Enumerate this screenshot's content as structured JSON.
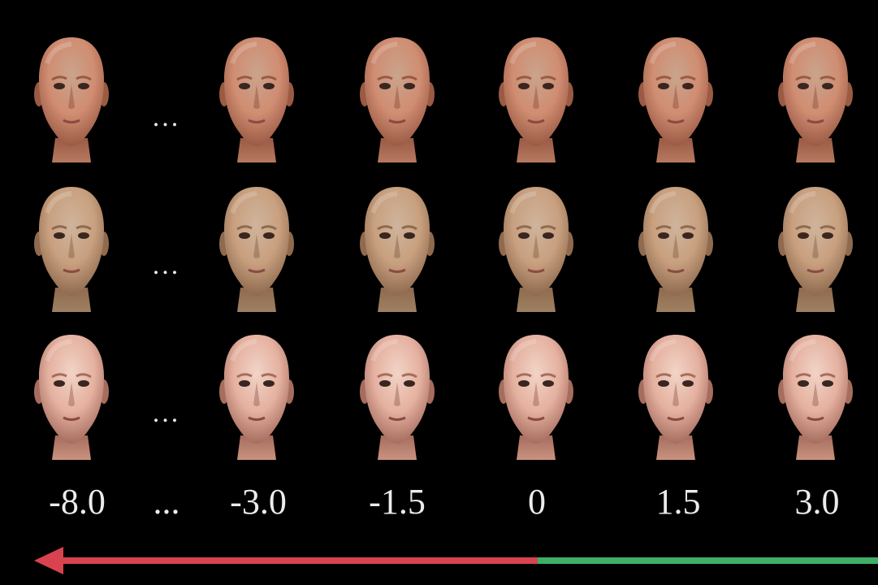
{
  "rows": [
    {
      "skin_top": "#c9a48c",
      "skin": "#d08d72",
      "shade": "#9a5a44",
      "neck": "#b77860"
    },
    {
      "skin_top": "#cfb49c",
      "skin": "#c8a07f",
      "shade": "#8f6a4e",
      "neck": "#9e8062"
    },
    {
      "skin_top": "#f1d4c7",
      "skin": "#e5b1a0",
      "shade": "#a66d5e",
      "neck": "#c9927f"
    }
  ],
  "ellipsis": "...",
  "labels": [
    "-8.0",
    "...",
    "-3.0",
    "-1.5",
    "0",
    "1.5",
    "3.0"
  ],
  "arrow": {
    "negative_color": "#d8434f",
    "positive_color": "#3fae67"
  }
}
